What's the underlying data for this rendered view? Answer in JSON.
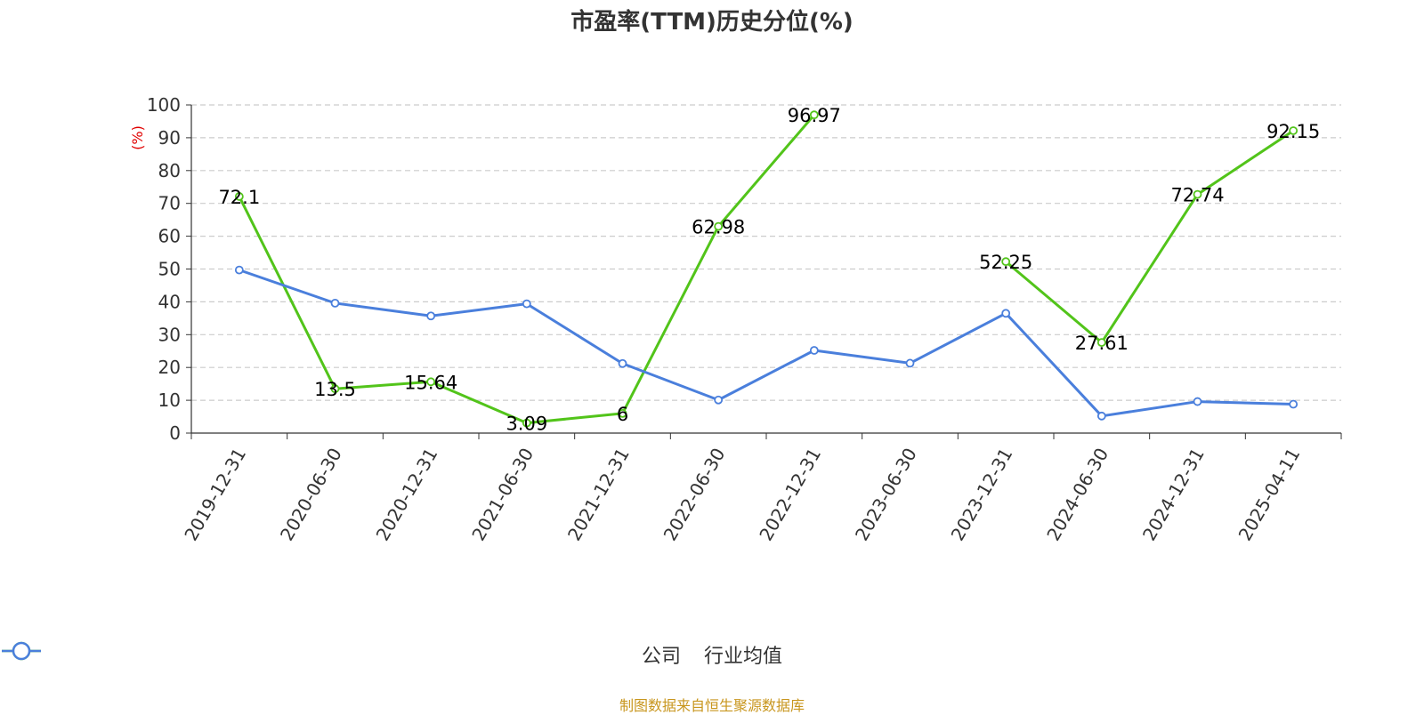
{
  "title": "市盈率(TTM)历史分位(%)",
  "source_note": "制图数据来自恒生聚源数据库",
  "chart_data": {
    "type": "line",
    "title": "市盈率(TTM)历史分位(%)",
    "ylabel": "(%)",
    "xlabel": "",
    "ylim": [
      0,
      100
    ],
    "yticks": [
      0,
      10,
      20,
      30,
      40,
      50,
      60,
      70,
      80,
      90,
      100
    ],
    "grid": true,
    "legend_position": "bottom",
    "categories": [
      "2019-12-31",
      "2020-06-30",
      "2020-12-31",
      "2021-06-30",
      "2021-12-31",
      "2022-06-30",
      "2022-12-31",
      "2023-06-30",
      "2023-12-31",
      "2024-06-30",
      "2024-12-31",
      "2025-04-11"
    ],
    "series": [
      {
        "name": "公司",
        "color": "#52c41a",
        "values": [
          72.1,
          13.5,
          15.64,
          3.09,
          6,
          62.98,
          96.97,
          null,
          52.25,
          27.61,
          72.74,
          92.15
        ],
        "labels": [
          "72.1",
          "13.5",
          "15.64",
          "3.09",
          "6",
          "62.98",
          "96.97",
          null,
          "52.25",
          "27.61",
          "72.74",
          "92.15"
        ]
      },
      {
        "name": "行业均值",
        "color": "#4a7fdc",
        "values": [
          49.7,
          39.6,
          35.7,
          39.4,
          21.2,
          10.1,
          25.2,
          21.3,
          36.5,
          5.2,
          9.6,
          8.8
        ]
      }
    ]
  }
}
